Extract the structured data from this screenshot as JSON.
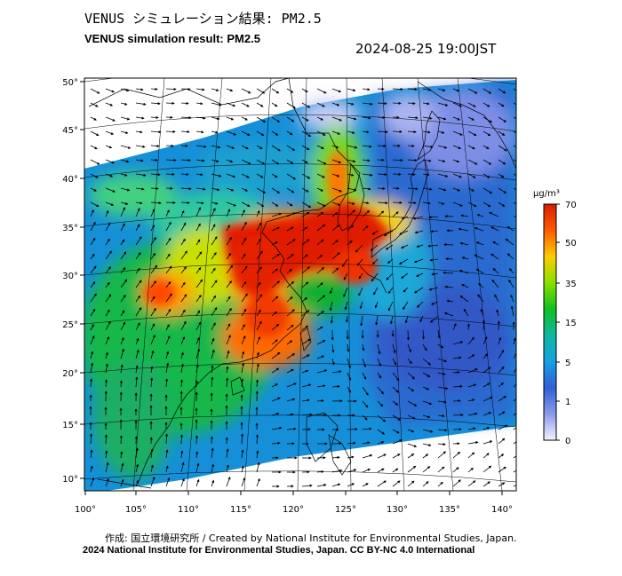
{
  "header": {
    "title_jp": "VENUS シミュレーション結果: PM2.5",
    "title_en": "VENUS simulation result: PM2.5",
    "timestamp": "2024-08-25 19:00JST"
  },
  "map": {
    "lon_ticks": [
      "100°",
      "105°",
      "110°",
      "115°",
      "120°",
      "125°",
      "130°",
      "135°",
      "140°"
    ],
    "lat_ticks": [
      "50°",
      "45°",
      "40°",
      "35°",
      "30°",
      "25°",
      "20°",
      "15°",
      "10°"
    ],
    "lon_range": [
      100,
      141
    ],
    "lat_range": [
      9,
      51
    ],
    "variable": "PM2.5 concentration",
    "high_pollution_region": "North China Plain / Yellow Sea / Korea",
    "features": [
      "typhoon-circulation-near-135E-25N"
    ]
  },
  "colorbar": {
    "unit": "μg/m³",
    "tick_labels": [
      "70",
      "50",
      "35",
      "15",
      "5",
      "1",
      "0"
    ],
    "colors": [
      "#d81c00",
      "#ff5a00",
      "#ffcc00",
      "#88e000",
      "#10c020",
      "#0fb8a0",
      "#16a0e0",
      "#3060d8",
      "#8a9ae8",
      "#f4f4ff"
    ]
  },
  "footer": {
    "credit": "作成: 国立環境研究所 / Created by National Institute for Environmental Studies, Japan.",
    "copyright": "2024 National Institute for Environmental Studies, Japan. CC BY-NC 4.0 International"
  }
}
